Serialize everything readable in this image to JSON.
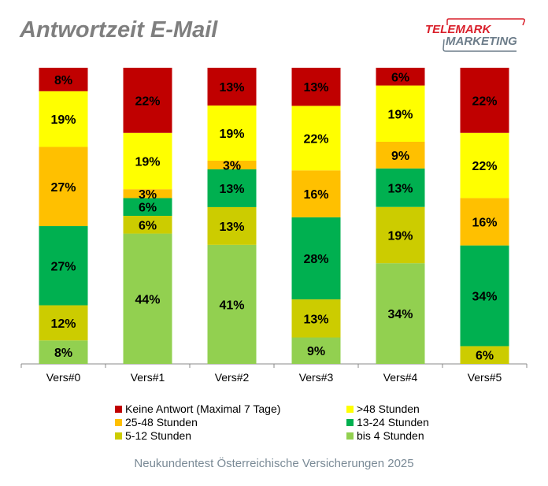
{
  "chart_data": {
    "type": "bar",
    "stacked": true,
    "title": "Antwortzeit E-Mail",
    "subtitle": "Neukundentest Österreichische Versicherungen 2025",
    "categories": [
      "Vers#0",
      "Vers#1",
      "Vers#2",
      "Vers#3",
      "Vers#4",
      "Vers#5"
    ],
    "series": [
      {
        "name": "bis 4 Stunden",
        "color": "#92d050",
        "values": [
          8,
          44,
          41,
          9,
          34,
          0
        ]
      },
      {
        "name": "5-12 Stunden",
        "color": "#cccc00",
        "values": [
          12,
          6,
          13,
          13,
          19,
          6
        ]
      },
      {
        "name": "13-24 Stunden",
        "color": "#00b050",
        "values": [
          27,
          6,
          13,
          28,
          13,
          34
        ]
      },
      {
        "name": "25-48 Stunden",
        "color": "#ffc000",
        "values": [
          27,
          3,
          3,
          16,
          9,
          16
        ]
      },
      {
        "name": ">48 Stunden",
        "color": "#ffff00",
        "values": [
          19,
          19,
          19,
          22,
          19,
          22
        ]
      },
      {
        "name": "Keine Antwort (Maximal 7 Tage)",
        "color": "#c00000",
        "values": [
          8,
          22,
          13,
          13,
          6,
          22
        ]
      }
    ],
    "value_suffix": "%",
    "ylim": [
      0,
      100
    ],
    "grid": false,
    "legend_position": "bottom"
  },
  "logo": {
    "line1": "TELEMARK",
    "line2": "MARKETING"
  }
}
